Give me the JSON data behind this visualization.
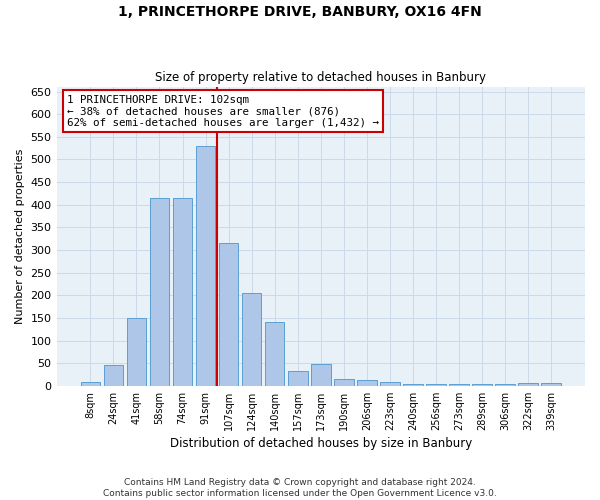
{
  "title": "1, PRINCETHORPE DRIVE, BANBURY, OX16 4FN",
  "subtitle": "Size of property relative to detached houses in Banbury",
  "xlabel": "Distribution of detached houses by size in Banbury",
  "ylabel": "Number of detached properties",
  "categories": [
    "8sqm",
    "24sqm",
    "41sqm",
    "58sqm",
    "74sqm",
    "91sqm",
    "107sqm",
    "124sqm",
    "140sqm",
    "157sqm",
    "173sqm",
    "190sqm",
    "206sqm",
    "223sqm",
    "240sqm",
    "256sqm",
    "273sqm",
    "289sqm",
    "306sqm",
    "322sqm",
    "339sqm"
  ],
  "values": [
    8,
    45,
    150,
    415,
    415,
    530,
    315,
    205,
    140,
    33,
    48,
    14,
    13,
    8,
    4,
    5,
    5,
    5,
    5,
    7,
    7
  ],
  "bar_color": "#aec6e8",
  "bar_edge_color": "#5a9fd4",
  "property_bin_index": 6,
  "annotation_line1": "1 PRINCETHORPE DRIVE: 102sqm",
  "annotation_line2": "← 38% of detached houses are smaller (876)",
  "annotation_line3": "62% of semi-detached houses are larger (1,432) →",
  "vline_color": "#cc0000",
  "ylim": [
    0,
    660
  ],
  "yticks": [
    0,
    50,
    100,
    150,
    200,
    250,
    300,
    350,
    400,
    450,
    500,
    550,
    600,
    650
  ],
  "grid_color": "#ccd9e8",
  "background_color": "#e8f0f8",
  "footer1": "Contains HM Land Registry data © Crown copyright and database right 2024.",
  "footer2": "Contains public sector information licensed under the Open Government Licence v3.0."
}
